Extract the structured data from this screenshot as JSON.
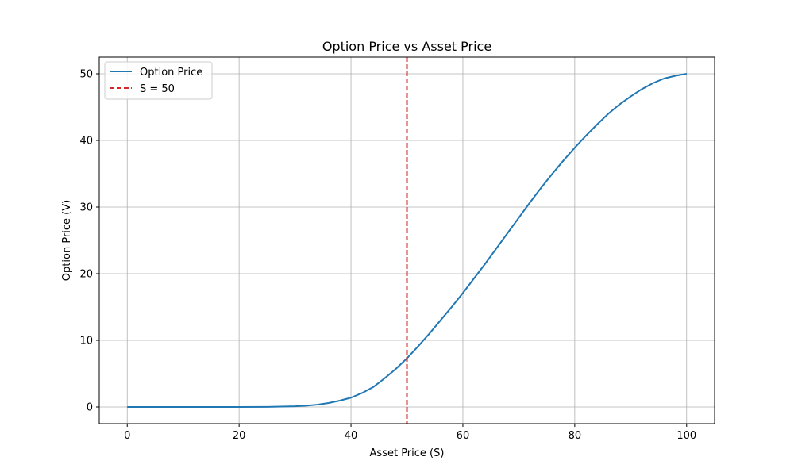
{
  "chart_data": {
    "type": "line",
    "title": "Option Price vs Asset Price",
    "xlabel": "Asset Price (S)",
    "ylabel": "Option Price (V)",
    "xlim": [
      -5,
      105
    ],
    "ylim": [
      -2.5,
      52.5
    ],
    "xticks": [
      0,
      20,
      40,
      60,
      80,
      100
    ],
    "yticks": [
      0,
      10,
      20,
      30,
      40,
      50
    ],
    "grid": true,
    "legend_position": "top-left",
    "series": [
      {
        "name": "Option Price",
        "color": "#1f77b4",
        "style": "solid",
        "x": [
          0,
          10,
          20,
          25,
          30,
          32,
          34,
          36,
          38,
          40,
          42,
          44,
          46,
          48,
          50,
          52,
          54,
          56,
          58,
          60,
          62,
          64,
          66,
          68,
          70,
          72,
          74,
          76,
          78,
          80,
          82,
          84,
          86,
          88,
          90,
          92,
          94,
          96,
          98,
          100
        ],
        "y": [
          0,
          0,
          0,
          0.02,
          0.1,
          0.2,
          0.35,
          0.6,
          0.95,
          1.4,
          2.1,
          3.0,
          4.3,
          5.7,
          7.3,
          9.1,
          11.0,
          13.0,
          15.0,
          17.1,
          19.3,
          21.5,
          23.8,
          26.1,
          28.4,
          30.7,
          32.9,
          35.0,
          37.0,
          38.9,
          40.7,
          42.4,
          44.0,
          45.4,
          46.6,
          47.7,
          48.6,
          49.3,
          49.7,
          50.0
        ]
      },
      {
        "name": "S = 50",
        "color": "#d62728",
        "style": "dashed",
        "vertical_line_x": 50
      }
    ]
  }
}
